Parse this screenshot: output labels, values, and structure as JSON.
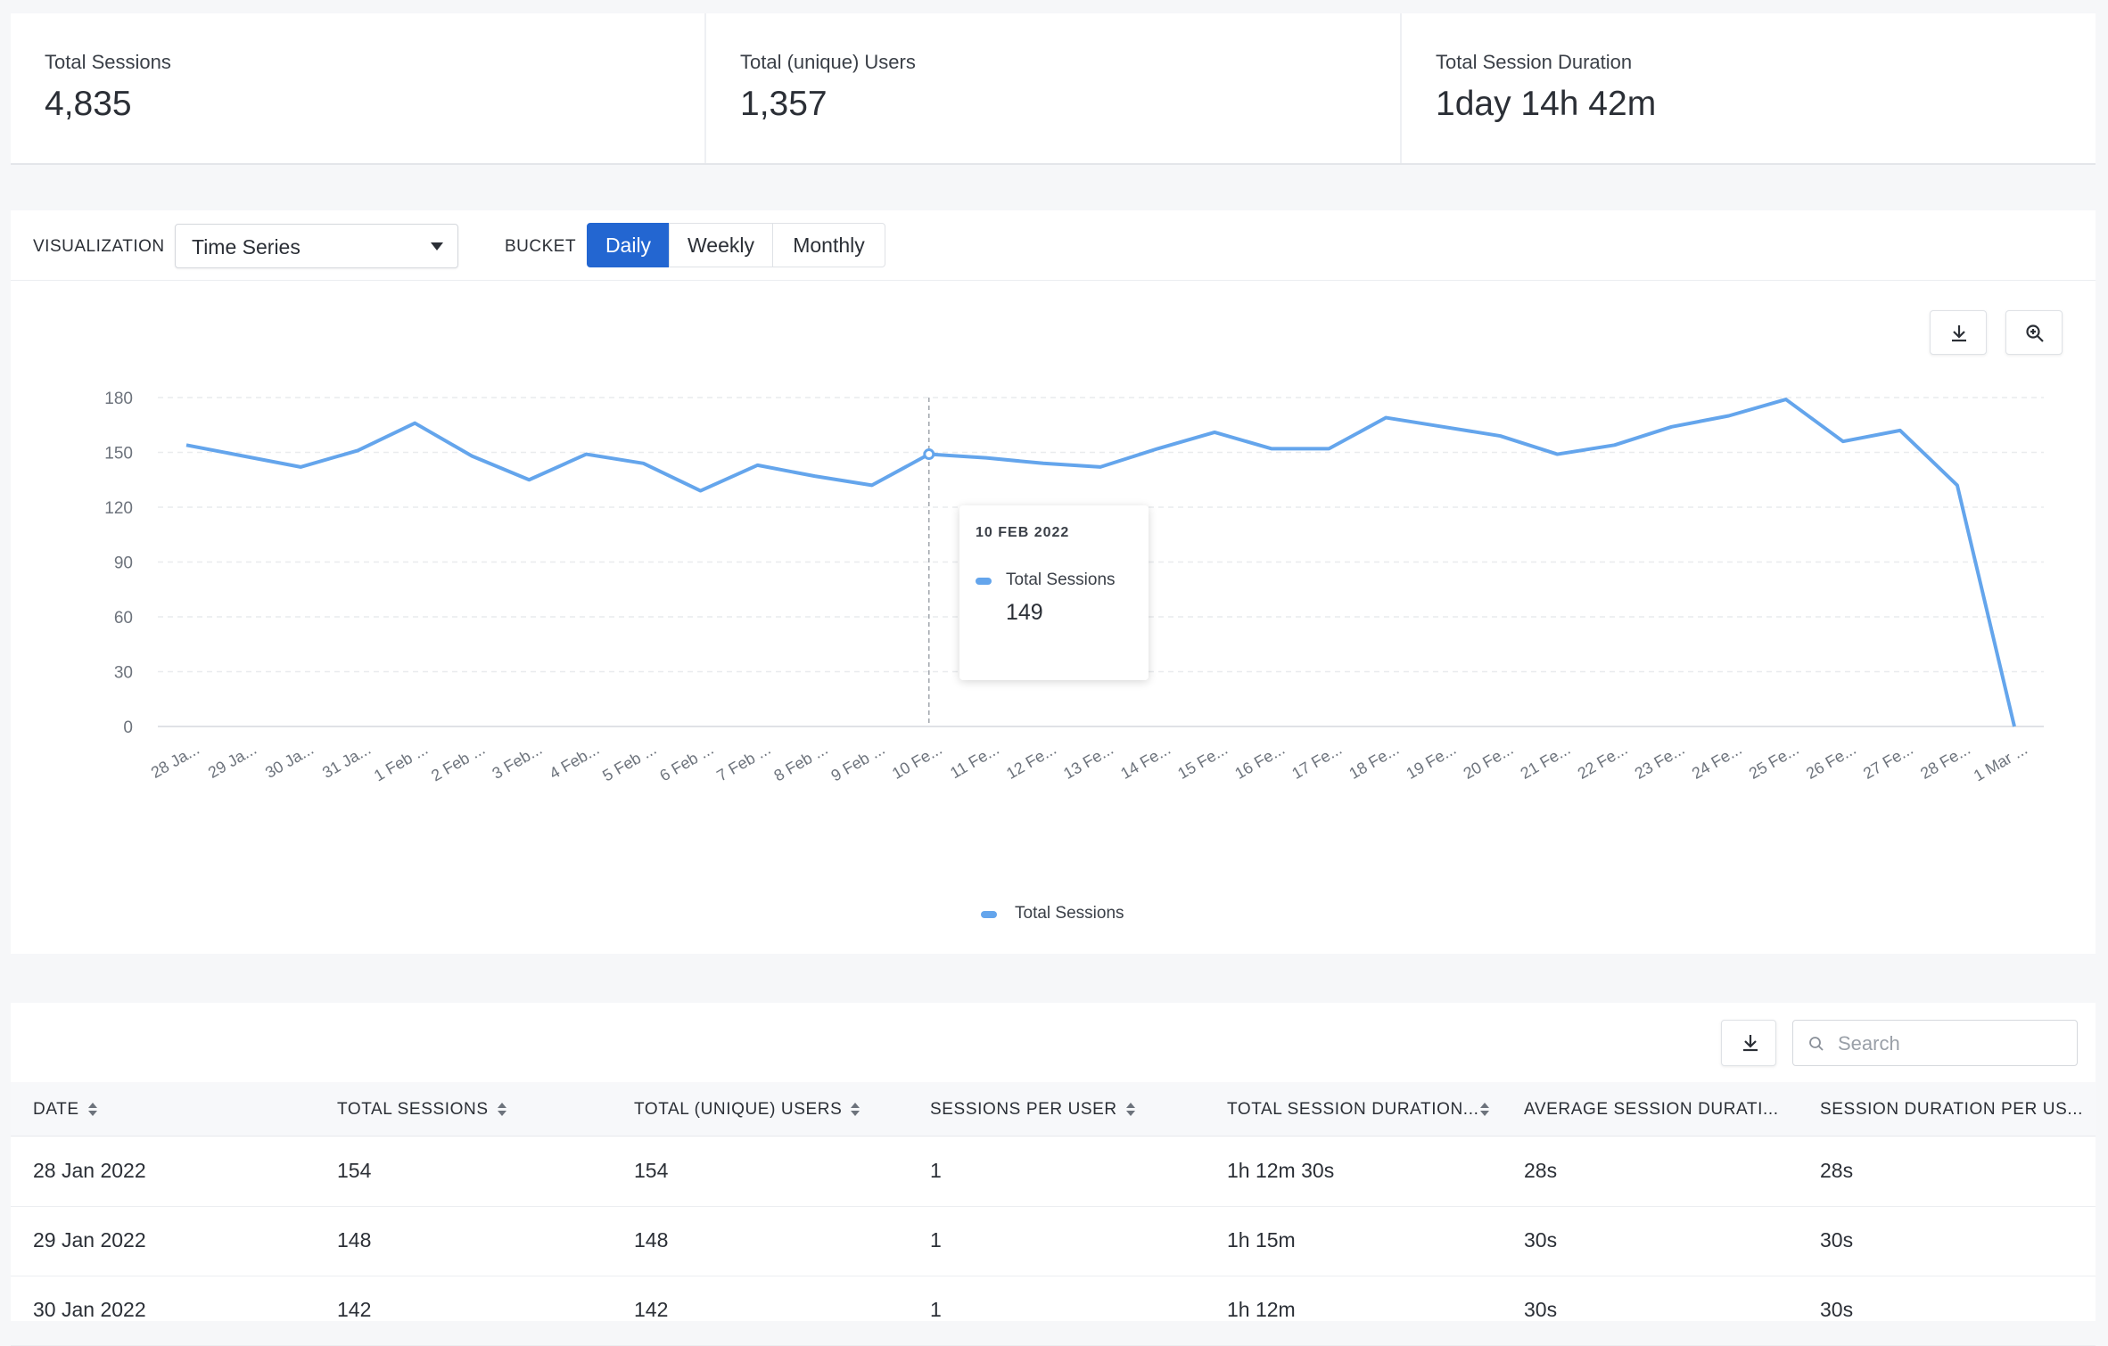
{
  "kpis": [
    {
      "label": "Total Sessions",
      "value": "4,835"
    },
    {
      "label": "Total (unique) Users",
      "value": "1,357"
    },
    {
      "label": "Total Session Duration",
      "value": "1day 14h 42m"
    }
  ],
  "toolbar": {
    "visualization_label": "VISUALIZATION",
    "visualization_value": "Time Series",
    "bucket_label": "BUCKET",
    "buckets": [
      "Daily",
      "Weekly",
      "Monthly"
    ],
    "active_bucket": "Daily"
  },
  "tooltip": {
    "date": "10 FEB 2022",
    "series": "Total Sessions",
    "value": "149"
  },
  "colors": {
    "primary": "#2366d1",
    "series": "#64a5ec"
  },
  "chart_data": {
    "type": "line",
    "title": "",
    "xlabel": "",
    "ylabel": "",
    "ylim": [
      0,
      180
    ],
    "yticks": [
      0,
      30,
      60,
      90,
      120,
      150,
      180
    ],
    "grid": true,
    "legend": "bottom-center",
    "categories": [
      "28 Ja...",
      "29 Ja...",
      "30 Ja...",
      "31 Ja...",
      "1 Feb ...",
      "2 Feb ...",
      "3 Feb...",
      "4 Feb...",
      "5 Feb ...",
      "6 Feb ...",
      "7 Feb ...",
      "8 Feb ...",
      "9 Feb ...",
      "10 Fe...",
      "11 Fe...",
      "12 Fe...",
      "13 Fe...",
      "14 Fe...",
      "15 Fe...",
      "16 Fe...",
      "17 Fe...",
      "18 Fe...",
      "19 Fe...",
      "20 Fe...",
      "21 Fe...",
      "22 Fe...",
      "23 Fe...",
      "24 Fe...",
      "25 Fe...",
      "26 Fe...",
      "27 Fe...",
      "28 Fe...",
      "1 Mar ..."
    ],
    "series": [
      {
        "name": "Total Sessions",
        "values": [
          154,
          148,
          142,
          151,
          166,
          148,
          135,
          149,
          144,
          129,
          143,
          137,
          132,
          149,
          147,
          144,
          142,
          152,
          161,
          152,
          152,
          169,
          164,
          159,
          149,
          154,
          164,
          170,
          179,
          156,
          162,
          132,
          0
        ]
      }
    ],
    "highlight_index": 13
  },
  "table": {
    "search_placeholder": "Search",
    "columns": [
      "DATE",
      "TOTAL SESSIONS",
      "TOTAL (UNIQUE) USERS",
      "SESSIONS PER USER",
      "TOTAL SESSION DURATION...",
      "AVERAGE SESSION DURATI...",
      "SESSION DURATION PER US..."
    ],
    "rows": [
      [
        "28 Jan 2022",
        "154",
        "154",
        "1",
        "1h 12m 30s",
        "28s",
        "28s"
      ],
      [
        "29 Jan 2022",
        "148",
        "148",
        "1",
        "1h 15m",
        "30s",
        "30s"
      ],
      [
        "30 Jan 2022",
        "142",
        "142",
        "1",
        "1h 12m",
        "30s",
        "30s"
      ]
    ]
  }
}
